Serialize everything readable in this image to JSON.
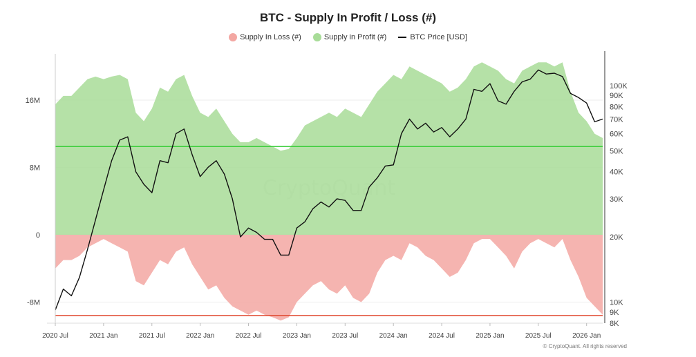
{
  "chart_data": {
    "type": "area",
    "title": "BTC - Supply In Profit / Loss (#)",
    "watermark": "CryptoQuant",
    "copyright": "© CryptoQuant. All rights reserved",
    "legend": {
      "placement": "top-center",
      "items": [
        {
          "label": "Supply In Loss (#)",
          "color": "#f3a7a2",
          "shape": "dot"
        },
        {
          "label": "Supply in Profit (#)",
          "color": "#a8dc98",
          "shape": "dot"
        },
        {
          "label": "BTC Price [USD]",
          "color": "#111111",
          "shape": "line"
        }
      ]
    },
    "x_axis": {
      "ticks": [
        "2020 Jul",
        "2021 Jan",
        "2021 Jul",
        "2022 Jan",
        "2022 Jul",
        "2023 Jan",
        "2023 Jul",
        "2024 Jan",
        "2024 Jul",
        "2025 Jan",
        "2025 Jul",
        "2026 Jan"
      ],
      "range": [
        "2020-07",
        "2026-03"
      ]
    },
    "y_left": {
      "ticks": [
        {
          "label": "16M",
          "value": 16
        },
        {
          "label": "8M",
          "value": 8
        },
        {
          "label": "0",
          "value": 0
        },
        {
          "label": "-8M",
          "value": -8
        }
      ],
      "range_millions": [
        -10.5,
        21.5
      ]
    },
    "y_right": {
      "scale": "log",
      "ticks": [
        {
          "label": "100K",
          "value": 100000
        },
        {
          "label": "90K",
          "value": 90000
        },
        {
          "label": "80K",
          "value": 80000
        },
        {
          "label": "70K",
          "value": 70000
        },
        {
          "label": "60K",
          "value": 60000
        },
        {
          "label": "50K",
          "value": 50000
        },
        {
          "label": "40K",
          "value": 40000
        },
        {
          "label": "30K",
          "value": 30000
        },
        {
          "label": "20K",
          "value": 20000
        },
        {
          "label": "10K",
          "value": 10000
        },
        {
          "label": "9K",
          "value": 9000
        },
        {
          "label": "8K",
          "value": 8000
        }
      ],
      "range": [
        8000,
        140000
      ]
    },
    "reference_lines": [
      {
        "name": "profit-threshold",
        "axis": "left",
        "value": 10.5,
        "color": "#33cc33"
      },
      {
        "name": "loss-threshold",
        "axis": "left",
        "value": -9.6,
        "color": "#e0452b"
      }
    ],
    "series": [
      {
        "name": "Supply in Profit (#)",
        "color": "#a8dc98",
        "unit": "millions",
        "x": [
          "2020-07",
          "2020-08",
          "2020-09",
          "2020-10",
          "2020-11",
          "2020-12",
          "2021-01",
          "2021-02",
          "2021-03",
          "2021-04",
          "2021-05",
          "2021-06",
          "2021-07",
          "2021-08",
          "2021-09",
          "2021-10",
          "2021-11",
          "2021-12",
          "2022-01",
          "2022-02",
          "2022-03",
          "2022-04",
          "2022-05",
          "2022-06",
          "2022-07",
          "2022-08",
          "2022-09",
          "2022-10",
          "2022-11",
          "2022-12",
          "2023-01",
          "2023-02",
          "2023-03",
          "2023-04",
          "2023-05",
          "2023-06",
          "2023-07",
          "2023-08",
          "2023-09",
          "2023-10",
          "2023-11",
          "2023-12",
          "2024-01",
          "2024-02",
          "2024-03",
          "2024-04",
          "2024-05",
          "2024-06",
          "2024-07",
          "2024-08",
          "2024-09",
          "2024-10",
          "2024-11",
          "2024-12",
          "2025-01",
          "2025-02",
          "2025-03",
          "2025-04",
          "2025-05",
          "2025-06",
          "2025-07",
          "2025-08",
          "2025-09",
          "2025-10",
          "2025-11",
          "2025-12",
          "2026-01",
          "2026-02",
          "2026-03"
        ],
        "values": [
          15.5,
          16.5,
          16.5,
          17.5,
          18.5,
          18.8,
          18.5,
          18.8,
          19.0,
          18.5,
          14.5,
          13.5,
          15.0,
          17.5,
          17.0,
          18.5,
          19.0,
          16.5,
          14.5,
          14.0,
          15.0,
          13.5,
          12.0,
          11.0,
          11.0,
          11.5,
          11.0,
          10.5,
          10.0,
          10.2,
          11.5,
          13.0,
          13.5,
          14.0,
          14.5,
          14.0,
          15.0,
          14.5,
          14.0,
          15.5,
          17.0,
          18.0,
          19.0,
          18.5,
          20.0,
          19.5,
          19.0,
          18.5,
          18.0,
          17.0,
          17.5,
          18.5,
          20.0,
          20.5,
          20.0,
          19.5,
          18.5,
          18.0,
          19.5,
          20.0,
          20.5,
          20.5,
          20.0,
          20.5,
          17.0,
          14.5,
          13.5,
          12.0,
          11.5
        ]
      },
      {
        "name": "Supply In Loss (#)",
        "color": "#f3a7a2",
        "unit": "millions",
        "x": [
          "2020-07",
          "2020-08",
          "2020-09",
          "2020-10",
          "2020-11",
          "2020-12",
          "2021-01",
          "2021-02",
          "2021-03",
          "2021-04",
          "2021-05",
          "2021-06",
          "2021-07",
          "2021-08",
          "2021-09",
          "2021-10",
          "2021-11",
          "2021-12",
          "2022-01",
          "2022-02",
          "2022-03",
          "2022-04",
          "2022-05",
          "2022-06",
          "2022-07",
          "2022-08",
          "2022-09",
          "2022-10",
          "2022-11",
          "2022-12",
          "2023-01",
          "2023-02",
          "2023-03",
          "2023-04",
          "2023-05",
          "2023-06",
          "2023-07",
          "2023-08",
          "2023-09",
          "2023-10",
          "2023-11",
          "2023-12",
          "2024-01",
          "2024-02",
          "2024-03",
          "2024-04",
          "2024-05",
          "2024-06",
          "2024-07",
          "2024-08",
          "2024-09",
          "2024-10",
          "2024-11",
          "2024-12",
          "2025-01",
          "2025-02",
          "2025-03",
          "2025-04",
          "2025-05",
          "2025-06",
          "2025-07",
          "2025-08",
          "2025-09",
          "2025-10",
          "2025-11",
          "2025-12",
          "2026-01",
          "2026-02",
          "2026-03"
        ],
        "values": [
          -4.0,
          -3.0,
          -3.0,
          -2.5,
          -1.5,
          -1.0,
          -0.5,
          -1.0,
          -1.5,
          -2.0,
          -5.5,
          -6.0,
          -4.5,
          -3.0,
          -3.5,
          -2.0,
          -1.5,
          -3.5,
          -5.0,
          -6.5,
          -6.0,
          -7.5,
          -8.5,
          -9.0,
          -9.5,
          -9.0,
          -9.5,
          -9.8,
          -10.2,
          -9.8,
          -8.0,
          -7.0,
          -6.0,
          -5.5,
          -6.5,
          -7.0,
          -6.0,
          -7.5,
          -8.0,
          -7.0,
          -4.5,
          -3.0,
          -2.5,
          -3.0,
          -1.0,
          -1.5,
          -2.5,
          -3.0,
          -4.0,
          -5.0,
          -4.5,
          -3.0,
          -1.0,
          -0.5,
          -0.5,
          -1.5,
          -2.5,
          -4.0,
          -2.0,
          -1.0,
          -0.5,
          -1.0,
          -1.5,
          -0.5,
          -3.0,
          -5.0,
          -7.5,
          -8.5,
          -9.5
        ]
      },
      {
        "name": "BTC Price [USD]",
        "color": "#111111",
        "unit": "USD",
        "axis": "right",
        "x": [
          "2020-07",
          "2020-08",
          "2020-09",
          "2020-10",
          "2020-11",
          "2020-12",
          "2021-01",
          "2021-02",
          "2021-03",
          "2021-04",
          "2021-05",
          "2021-06",
          "2021-07",
          "2021-08",
          "2021-09",
          "2021-10",
          "2021-11",
          "2021-12",
          "2022-01",
          "2022-02",
          "2022-03",
          "2022-04",
          "2022-05",
          "2022-06",
          "2022-07",
          "2022-08",
          "2022-09",
          "2022-10",
          "2022-11",
          "2022-12",
          "2023-01",
          "2023-02",
          "2023-03",
          "2023-04",
          "2023-05",
          "2023-06",
          "2023-07",
          "2023-08",
          "2023-09",
          "2023-10",
          "2023-11",
          "2023-12",
          "2024-01",
          "2024-02",
          "2024-03",
          "2024-04",
          "2024-05",
          "2024-06",
          "2024-07",
          "2024-08",
          "2024-09",
          "2024-10",
          "2024-11",
          "2024-12",
          "2025-01",
          "2025-02",
          "2025-03",
          "2025-04",
          "2025-05",
          "2025-06",
          "2025-07",
          "2025-08",
          "2025-09",
          "2025-10",
          "2025-11",
          "2025-12",
          "2026-01",
          "2026-02",
          "2026-03"
        ],
        "values": [
          9200,
          11500,
          10700,
          13000,
          17500,
          24000,
          33000,
          45000,
          56000,
          58000,
          40000,
          35000,
          32000,
          45000,
          44000,
          60000,
          63000,
          48000,
          38000,
          42000,
          45000,
          39000,
          30000,
          20000,
          22000,
          21000,
          19500,
          19500,
          16500,
          16500,
          22000,
          23500,
          27000,
          29000,
          27500,
          30000,
          29500,
          26500,
          26500,
          34000,
          37500,
          42500,
          43000,
          60000,
          70000,
          63000,
          67000,
          61000,
          64000,
          58000,
          63000,
          70000,
          96000,
          94000,
          102000,
          85000,
          82000,
          94000,
          104000,
          107000,
          118000,
          113000,
          114000,
          110000,
          92000,
          88000,
          83000,
          68000,
          70000
        ]
      }
    ]
  }
}
